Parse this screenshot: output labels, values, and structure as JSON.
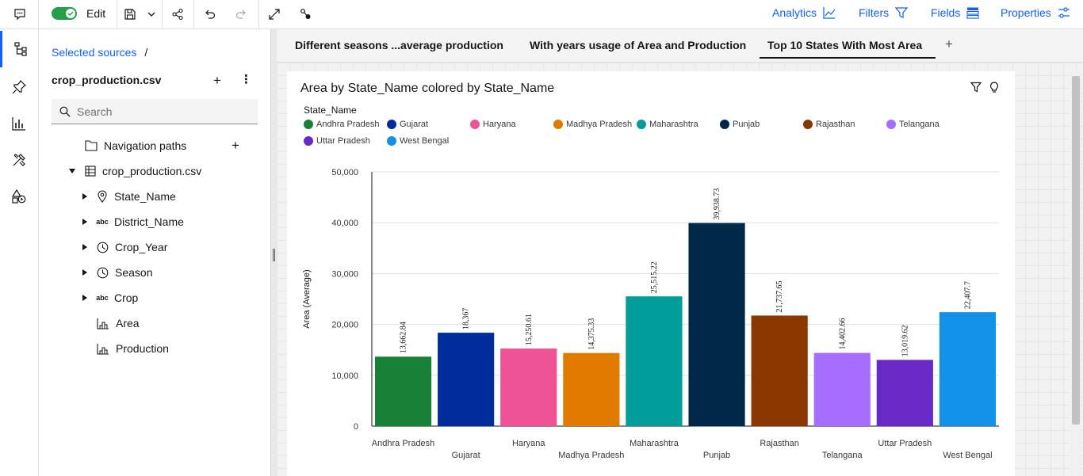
{
  "toolbar": {
    "edit_label": "Edit",
    "right_items": [
      {
        "label": "Analytics",
        "icon": "analytics-icon"
      },
      {
        "label": "Filters",
        "icon": "filter-icon"
      },
      {
        "label": "Fields",
        "icon": "fields-icon"
      },
      {
        "label": "Properties",
        "icon": "properties-icon"
      }
    ]
  },
  "sources": {
    "breadcrumb_link": "Selected sources",
    "breadcrumb_sep": "/",
    "source_name": "crop_production.csv",
    "search_placeholder": "Search",
    "navigation_paths": "Navigation paths",
    "table_name": "crop_production.csv",
    "fields": [
      {
        "label": "State_Name",
        "icon": "location-icon",
        "expandable": true
      },
      {
        "label": "District_Name",
        "icon": "abc-text-icon",
        "expandable": true
      },
      {
        "label": "Crop_Year",
        "icon": "clock-icon",
        "expandable": true
      },
      {
        "label": "Season",
        "icon": "clock-icon",
        "expandable": true
      },
      {
        "label": "Crop",
        "icon": "abc-text-icon",
        "expandable": true
      },
      {
        "label": "Area",
        "icon": "measure-icon",
        "expandable": false
      },
      {
        "label": "Production",
        "icon": "measure-icon",
        "expandable": false
      }
    ],
    "abc": "abc"
  },
  "tabs": [
    {
      "label": "Different seasons ...average production",
      "active": false
    },
    {
      "label": "With years usage of Area and Production",
      "active": false
    },
    {
      "label": "Top 10 States With Most Area",
      "active": true
    }
  ],
  "widget": {
    "title": "Area by State_Name colored by State_Name",
    "legend_title": "State_Name"
  },
  "chart_data": {
    "type": "bar",
    "title": "Area by State_Name colored by State_Name",
    "xlabel": "",
    "ylabel": "Area (Average)",
    "ylim": [
      0,
      50000
    ],
    "yticks": [
      "0",
      "10,000",
      "20,000",
      "30,000",
      "40,000",
      "50,000"
    ],
    "grid": true,
    "legend_position": "top",
    "categories": [
      "Andhra Pradesh",
      "Gujarat",
      "Haryana",
      "Madhya Pradesh",
      "Maharashtra",
      "Punjab",
      "Rajasthan",
      "Telangana",
      "Uttar Pradesh",
      "West Bengal"
    ],
    "values": [
      13662.84,
      18367,
      15250.61,
      14375.33,
      25515.22,
      39938.73,
      21737.65,
      14402.66,
      13019.62,
      22407.7
    ],
    "value_labels": [
      "13,662.84",
      "18,367",
      "15,250.61",
      "14,375.33",
      "25,515.22",
      "39,938.73",
      "21,737.65",
      "14,402.66",
      "13,019.62",
      "22,407.7"
    ],
    "colors": [
      "#198038",
      "#002d9c",
      "#ee5396",
      "#e07b00",
      "#009d9a",
      "#012749",
      "#8a3800",
      "#a56eff",
      "#6929c4",
      "#1192e8"
    ]
  }
}
